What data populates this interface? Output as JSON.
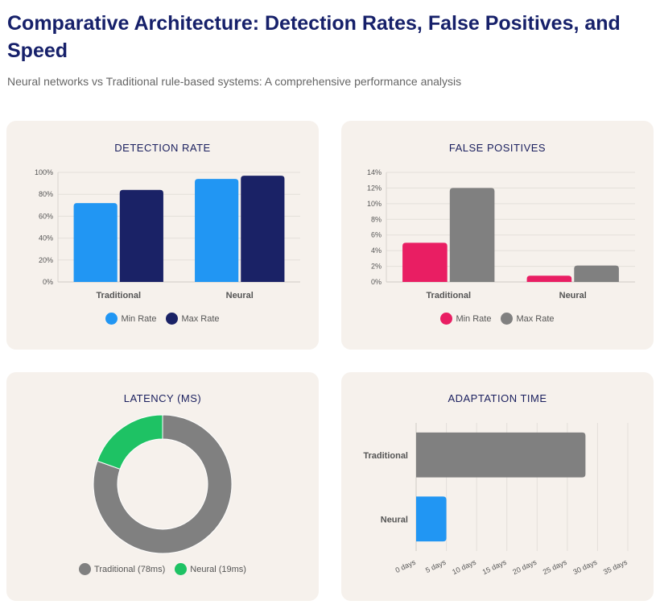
{
  "page": {
    "title": "Comparative Architecture: Detection Rates, False Positives, and Speed",
    "subtitle": "Neural networks vs Traditional rule-based systems: A comprehensive performance analysis"
  },
  "chart_data": [
    {
      "id": "detection",
      "type": "bar",
      "title": "Detection Rate",
      "categories": [
        "Traditional",
        "Neural"
      ],
      "series": [
        {
          "name": "Min Rate",
          "values": [
            72,
            94
          ],
          "color": "#2196f3"
        },
        {
          "name": "Max Rate",
          "values": [
            84,
            97
          ],
          "color": "#1a2266"
        }
      ],
      "ylim": [
        0,
        100
      ],
      "yticks": [
        0,
        20,
        40,
        60,
        80,
        100
      ],
      "ytick_labels": [
        "0%",
        "20%",
        "40%",
        "60%",
        "80%",
        "100%"
      ]
    },
    {
      "id": "falsepos",
      "type": "bar",
      "title": "False Positives",
      "categories": [
        "Traditional",
        "Neural"
      ],
      "series": [
        {
          "name": "Min Rate",
          "values": [
            5,
            0.8
          ],
          "color": "#e91e63"
        },
        {
          "name": "Max Rate",
          "values": [
            12,
            2.1
          ],
          "color": "#808080"
        }
      ],
      "ylim": [
        0,
        14
      ],
      "yticks": [
        0,
        2,
        4,
        6,
        8,
        10,
        12,
        14
      ],
      "ytick_labels": [
        "0%",
        "2%",
        "4%",
        "6%",
        "8%",
        "10%",
        "12%",
        "14%"
      ]
    },
    {
      "id": "latency",
      "type": "pie",
      "title": "Latency (ms)",
      "labels": [
        "Traditional (78ms)",
        "Neural (19ms)"
      ],
      "values": [
        78,
        19
      ],
      "colors": [
        "#808080",
        "#1ec264"
      ]
    },
    {
      "id": "adaptation",
      "type": "bar",
      "orientation": "horizontal",
      "title": "Adaptation Time",
      "categories": [
        "Traditional",
        "Neural"
      ],
      "values": [
        28,
        5
      ],
      "colors": [
        "#808080",
        "#2196f3"
      ],
      "xlim": [
        0,
        35
      ],
      "xticks": [
        0,
        5,
        10,
        15,
        20,
        25,
        30,
        35
      ],
      "xtick_labels": [
        "0 days",
        "5 days",
        "10 days",
        "15 days",
        "20 days",
        "25 days",
        "30 days",
        "35 days"
      ]
    }
  ]
}
